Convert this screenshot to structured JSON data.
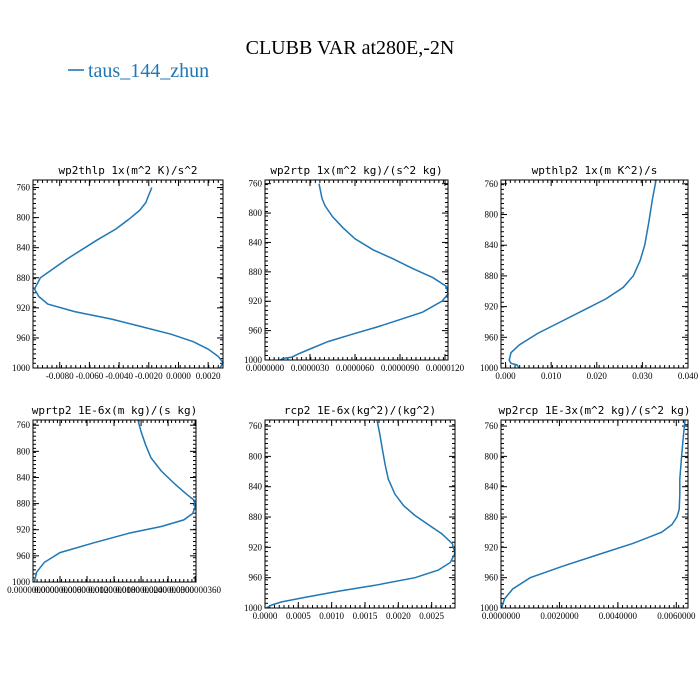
{
  "figure": {
    "title": "CLUBB VAR at280E,-2N",
    "legend_label": "taus_144_zhun",
    "series_color": "#1f77b4"
  },
  "chart_data": [
    {
      "type": "line",
      "title": "wp2thlp  1x(m^2 K)/s^2",
      "xlim": [
        -0.0098,
        0.003
      ],
      "ylim": [
        1000,
        750
      ],
      "x_ticks": [
        -0.008,
        -0.006,
        -0.004,
        -0.002,
        0.0,
        0.002
      ],
      "x_tick_labels": [
        "-0.0080",
        "-0.0060",
        "-0.0040",
        "-0.0020",
        "0.0000",
        "0.0020"
      ],
      "y_ticks": [
        760,
        800,
        840,
        880,
        920,
        960,
        1000
      ],
      "y_tick_labels": [
        "760",
        "800",
        "840",
        "880",
        "920",
        "960",
        "1000"
      ],
      "series": [
        {
          "x": [
            -0.0018,
            -0.002,
            -0.0022,
            -0.0026,
            -0.0032,
            -0.0042,
            -0.0055,
            -0.0075,
            -0.0093,
            -0.0097,
            -0.0094,
            -0.0088,
            -0.007,
            -0.0045,
            -0.0025,
            -0.0005,
            0.001,
            0.002,
            0.0027,
            0.003,
            0.0028
          ],
          "y": [
            760,
            770,
            780,
            790,
            800,
            815,
            830,
            855,
            880,
            895,
            905,
            915,
            925,
            935,
            945,
            955,
            965,
            975,
            985,
            993,
            1000
          ]
        }
      ]
    },
    {
      "type": "line",
      "title": "wp2rtp  1x(m^2 kg)/(s^2 kg)",
      "xlim": [
        0.0,
        1.22e-05
      ],
      "ylim": [
        1000,
        755
      ],
      "x_ticks": [
        0.0,
        3e-06,
        6e-06,
        9e-06,
        1.2e-05
      ],
      "x_tick_labels": [
        "0.0000000",
        "0.0000030",
        "0.0000060",
        "0.0000090",
        "0.0000120"
      ],
      "y_ticks": [
        760,
        800,
        840,
        880,
        920,
        960,
        1000
      ],
      "y_tick_labels": [
        "760",
        "800",
        "840",
        "880",
        "920",
        "960",
        "1000"
      ],
      "series": [
        {
          "x": [
            3.6e-06,
            3.7e-06,
            3.8e-06,
            4e-06,
            4.5e-06,
            5.2e-06,
            6e-06,
            7.2e-06,
            8.5e-06,
            9.8e-06,
            1.12e-05,
            1.21e-05,
            1.22e-05,
            1.18e-05,
            1.05e-05,
            9e-06,
            7.5e-06,
            5.8e-06,
            4.2e-06,
            3e-06,
            2.2e-06,
            1.8e-06,
            1.2e-06,
            1e-06
          ],
          "y": [
            760,
            770,
            780,
            790,
            805,
            820,
            835,
            850,
            862,
            875,
            888,
            900,
            910,
            920,
            935,
            945,
            955,
            965,
            975,
            985,
            992,
            996,
            998,
            1000
          ]
        }
      ]
    },
    {
      "type": "line",
      "title": "wpthlp2  1x(m K^2)/s",
      "xlim": [
        -0.001,
        0.04
      ],
      "ylim": [
        1000,
        755
      ],
      "x_ticks": [
        0.0,
        0.01,
        0.02,
        0.03,
        0.04
      ],
      "x_tick_labels": [
        "0.000",
        "0.010",
        "0.020",
        "0.030",
        "0.040"
      ],
      "y_ticks": [
        760,
        800,
        840,
        880,
        920,
        960,
        1000
      ],
      "y_tick_labels": [
        "760",
        "800",
        "840",
        "880",
        "920",
        "960",
        "1000"
      ],
      "series": [
        {
          "x": [
            0.033,
            0.0322,
            0.0314,
            0.0305,
            0.0295,
            0.028,
            0.0258,
            0.022,
            0.017,
            0.012,
            0.007,
            0.003,
            0.0012,
            0.0008,
            0.0012,
            0.0025,
            0.003
          ],
          "y": [
            755,
            780,
            810,
            840,
            860,
            880,
            895,
            910,
            925,
            940,
            955,
            970,
            980,
            990,
            994,
            996,
            1000
          ]
        }
      ]
    },
    {
      "type": "line",
      "title": "wprtp2  1E-6x(m kg)/(s kg)",
      "xlim": [
        0.0,
        3.62e-08
      ],
      "ylim": [
        1000,
        752
      ],
      "x_ticks": [
        0.0,
        6e-09,
        1.2e-08,
        1.8e-08,
        2.4e-08,
        3e-08,
        3.6e-08
      ],
      "x_tick_labels": [
        "0.0000000000",
        "0.0000000060",
        "0.0000000120",
        "0.0000000180",
        "0.0000000240",
        "0.0000000300",
        "0.0000000360"
      ],
      "y_ticks": [
        760,
        800,
        840,
        880,
        920,
        960,
        1000
      ],
      "y_tick_labels": [
        "760",
        "800",
        "840",
        "880",
        "920",
        "960",
        "1000"
      ],
      "series": [
        {
          "x": [
            2.33e-08,
            2.4e-08,
            2.5e-08,
            2.62e-08,
            2.85e-08,
            3.15e-08,
            3.4e-08,
            3.58e-08,
            3.6e-08,
            3.55e-08,
            3.35e-08,
            2.85e-08,
            2.15e-08,
            1.35e-08,
            6e-09,
            2.5e-09,
            8e-10,
            3e-10
          ],
          "y": [
            752,
            770,
            790,
            810,
            830,
            850,
            865,
            875,
            885,
            895,
            905,
            915,
            925,
            940,
            955,
            970,
            985,
            1000
          ]
        }
      ]
    },
    {
      "type": "line",
      "title": "rcp2  1E-6x(kg^2)/(kg^2)",
      "xlim": [
        0.0,
        0.00285
      ],
      "ylim": [
        1000,
        752
      ],
      "x_ticks": [
        0.0,
        0.0005,
        0.001,
        0.0015,
        0.002,
        0.0025
      ],
      "x_tick_labels": [
        "0.0000",
        "0.0005",
        "0.0010",
        "0.0015",
        "0.0020",
        "0.0025"
      ],
      "y_ticks": [
        760,
        800,
        840,
        880,
        920,
        960,
        1000
      ],
      "y_tick_labels": [
        "760",
        "800",
        "840",
        "880",
        "920",
        "960",
        "1000"
      ],
      "series": [
        {
          "x": [
            0.00168,
            0.00172,
            0.00176,
            0.0018,
            0.00185,
            0.00195,
            0.00208,
            0.00225,
            0.00245,
            0.00265,
            0.00281,
            0.00285,
            0.00278,
            0.0026,
            0.00225,
            0.00165,
            0.0011,
            0.0006,
            0.00025,
            0.0001,
            2e-05
          ],
          "y": [
            752,
            770,
            790,
            810,
            830,
            850,
            865,
            878,
            890,
            902,
            915,
            928,
            940,
            950,
            960,
            970,
            978,
            986,
            992,
            996,
            1000
          ]
        }
      ]
    },
    {
      "type": "line",
      "title": "wp2rcp  1E-3x(m^2 kg)/(s^2 kg)",
      "xlim": [
        0.0,
        0.0064
      ],
      "ylim": [
        1000,
        752
      ],
      "x_ticks": [
        0.0,
        0.002,
        0.004,
        0.006
      ],
      "x_tick_labels": [
        "0.0000000",
        "0.0020000",
        "0.0040000",
        "0.0060000"
      ],
      "y_ticks": [
        760,
        800,
        840,
        880,
        920,
        960,
        1000
      ],
      "y_tick_labels": [
        "760",
        "800",
        "840",
        "880",
        "920",
        "960",
        "1000"
      ],
      "series": [
        {
          "x": [
            0.0063,
            0.00625,
            0.00618,
            0.00612,
            0.00612,
            0.0061,
            0.00602,
            0.00585,
            0.0055,
            0.0045,
            0.0033,
            0.0021,
            0.001,
            0.0004,
            0.00012,
            2e-05
          ],
          "y": [
            752,
            770,
            800,
            830,
            850,
            870,
            880,
            890,
            900,
            915,
            930,
            945,
            960,
            975,
            988,
            1000
          ]
        }
      ]
    }
  ]
}
